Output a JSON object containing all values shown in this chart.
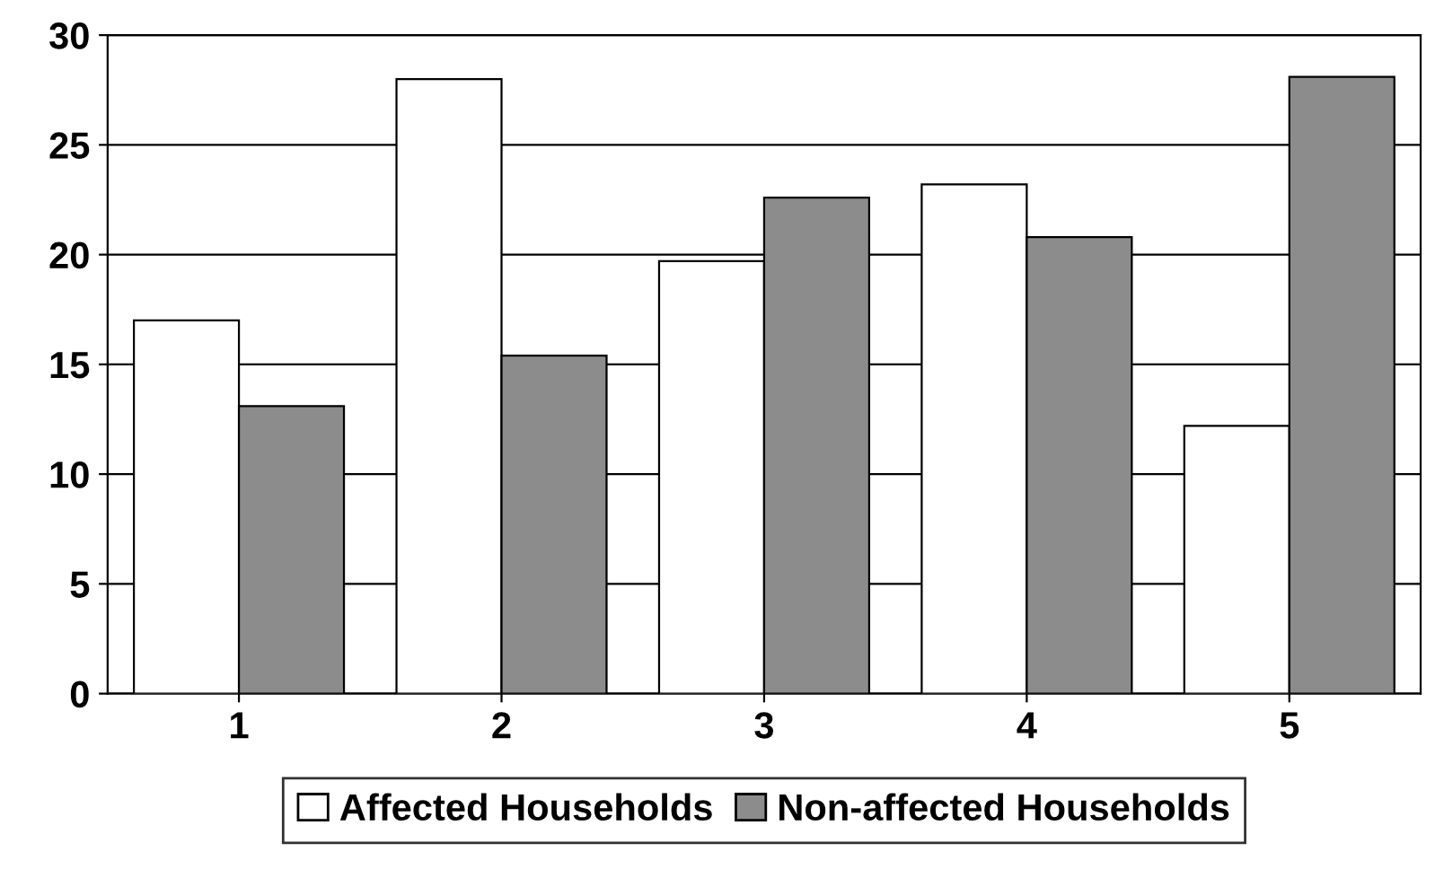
{
  "chart_data": {
    "type": "bar",
    "categories": [
      "1",
      "2",
      "3",
      "4",
      "5"
    ],
    "series": [
      {
        "name": "Affected Households",
        "color": "#ffffff",
        "values": [
          17.0,
          28.0,
          19.7,
          23.2,
          12.2
        ]
      },
      {
        "name": "Non-affected Households",
        "color": "#8c8c8c",
        "values": [
          13.1,
          15.4,
          22.6,
          20.8,
          28.1
        ]
      }
    ],
    "ylim": [
      0,
      30
    ],
    "yticks": [
      0,
      5,
      10,
      15,
      20,
      25,
      30
    ],
    "grid": "y",
    "legend": "bottom"
  }
}
